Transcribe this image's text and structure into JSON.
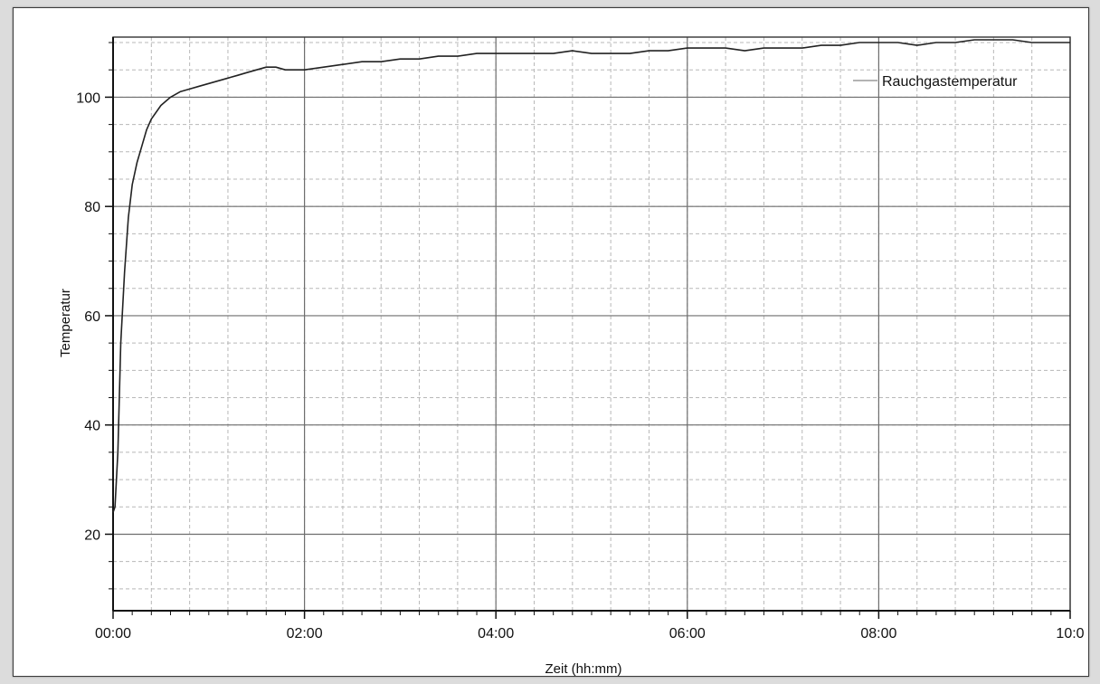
{
  "chart_data": {
    "type": "line",
    "xlabel": "Zeit (hh:mm)",
    "ylabel": "Temperatur",
    "x_unit": "minutes",
    "xlim": [
      0,
      10
    ],
    "ylim": [
      6,
      111
    ],
    "x_ticks": [
      {
        "value": 0,
        "label": "00:00"
      },
      {
        "value": 2,
        "label": "02:00"
      },
      {
        "value": 4,
        "label": "04:00"
      },
      {
        "value": 6,
        "label": "06:00"
      },
      {
        "value": 8,
        "label": "08:00"
      },
      {
        "value": 10,
        "label": "10:0"
      }
    ],
    "y_ticks": [
      {
        "value": 20,
        "label": "20"
      },
      {
        "value": 40,
        "label": "40"
      },
      {
        "value": 60,
        "label": "60"
      },
      {
        "value": 80,
        "label": "80"
      },
      {
        "value": 100,
        "label": "100"
      }
    ],
    "grid": true,
    "legend_position": "top-right",
    "series": [
      {
        "name": "Rauchgastemperatur",
        "color": "#222222",
        "x": [
          0,
          0.02,
          0.05,
          0.08,
          0.12,
          0.16,
          0.2,
          0.25,
          0.3,
          0.35,
          0.4,
          0.5,
          0.6,
          0.7,
          0.8,
          0.9,
          1.0,
          1.1,
          1.2,
          1.3,
          1.4,
          1.5,
          1.6,
          1.7,
          1.8,
          1.9,
          2.0,
          2.2,
          2.4,
          2.6,
          2.8,
          3.0,
          3.2,
          3.4,
          3.6,
          3.8,
          4.0,
          4.2,
          4.4,
          4.6,
          4.8,
          5.0,
          5.2,
          5.4,
          5.6,
          5.8,
          6.0,
          6.2,
          6.4,
          6.6,
          6.8,
          7.0,
          7.2,
          7.4,
          7.6,
          7.8,
          8.0,
          8.2,
          8.4,
          8.6,
          8.8,
          9.0,
          9.2,
          9.4,
          9.6,
          9.8,
          10.0
        ],
        "y": [
          24,
          25,
          35,
          55,
          68,
          78,
          84,
          88,
          91,
          94,
          96,
          98.5,
          100,
          101,
          101.5,
          102,
          102.5,
          103,
          103.5,
          104,
          104.5,
          105,
          105.5,
          105.5,
          105,
          105,
          105,
          105.5,
          106,
          106.5,
          106.5,
          107,
          107,
          107.5,
          107.5,
          108,
          108,
          108,
          108,
          108,
          108.5,
          108,
          108,
          108,
          108.5,
          108.5,
          109,
          109,
          109,
          108.5,
          109,
          109,
          109,
          109.5,
          109.5,
          110,
          110,
          110,
          109.5,
          110,
          110,
          110.5,
          110.5,
          110.5,
          110,
          110,
          110
        ]
      }
    ]
  }
}
